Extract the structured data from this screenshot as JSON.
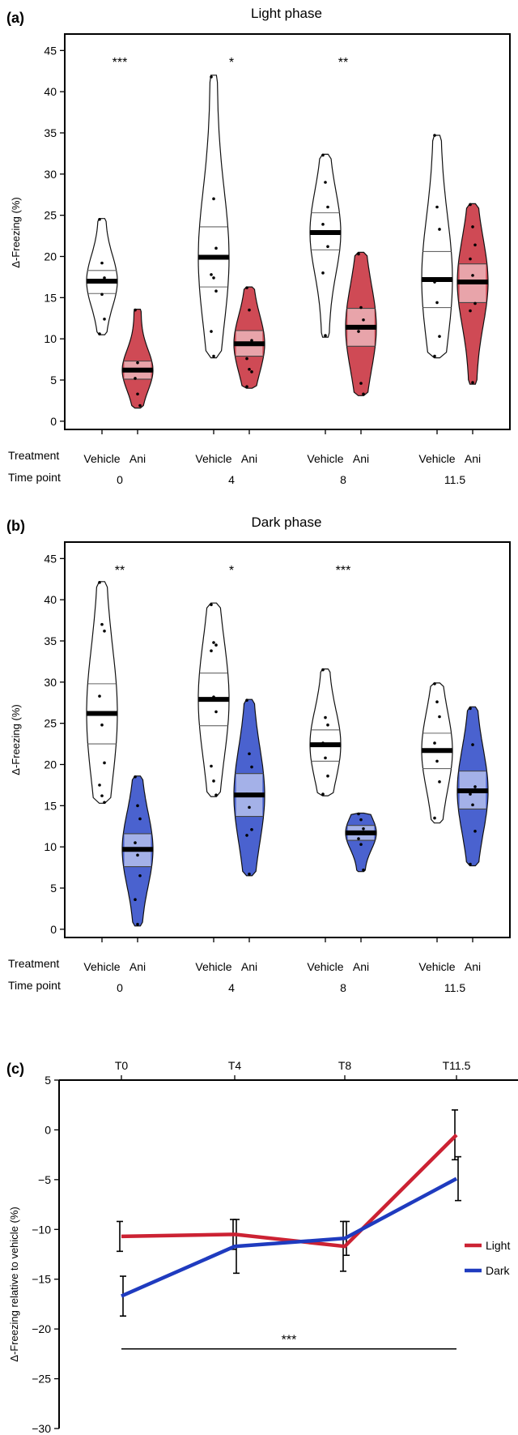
{
  "colors": {
    "light_violin": "#cf4a55",
    "light_violin_box": "#e8a4aa",
    "dark_violin": "#4a62cf",
    "dark_violin_box": "#a4b1e8",
    "light_line": "#cc2233",
    "dark_line": "#1f3bbf"
  },
  "chart_data": [
    {
      "panel": "(a)",
      "type": "violin",
      "title": "Light phase",
      "ylabel": "Δ-Freezing (%)",
      "ylim": [
        -1,
        47
      ],
      "yticks": [
        0,
        5,
        10,
        15,
        20,
        25,
        30,
        35,
        40,
        45
      ],
      "row_labels": {
        "treatment": "Treatment",
        "time": "Time point"
      },
      "time_points": [
        "0",
        "4",
        "8",
        "11.5"
      ],
      "significance": [
        "***",
        "*",
        "**",
        ""
      ],
      "groups": [
        {
          "treatment": "Vehicle",
          "time": "0",
          "min": 10.5,
          "max": 24.6,
          "q1": 15.5,
          "median": 17.0,
          "q3": 18.3,
          "points": [
            24.5,
            19.2,
            17.4,
            16.9,
            15.4,
            12.4,
            10.6
          ]
        },
        {
          "treatment": "Ani",
          "time": "0",
          "min": 1.6,
          "max": 13.6,
          "q1": 5.1,
          "median": 6.2,
          "q3": 7.3,
          "points": [
            13.5,
            7.1,
            6.3,
            5.2,
            3.3,
            1.9
          ]
        },
        {
          "treatment": "Vehicle",
          "time": "4",
          "min": 7.7,
          "max": 42.0,
          "q1": 16.3,
          "median": 19.9,
          "q3": 23.6,
          "points": [
            41.8,
            27.0,
            21.0,
            17.8,
            17.4,
            15.8,
            10.9,
            7.9
          ]
        },
        {
          "treatment": "Ani",
          "time": "4",
          "min": 4.0,
          "max": 16.3,
          "q1": 7.9,
          "median": 9.4,
          "q3": 11.0,
          "points": [
            16.2,
            13.5,
            9.8,
            7.6,
            6.3,
            6.0,
            4.2
          ]
        },
        {
          "treatment": "Vehicle",
          "time": "8",
          "min": 10.2,
          "max": 32.4,
          "q1": 20.8,
          "median": 22.9,
          "q3": 25.3,
          "points": [
            32.3,
            29.0,
            26.0,
            23.9,
            23.0,
            21.2,
            18.0,
            10.4
          ]
        },
        {
          "treatment": "Ani",
          "time": "8",
          "min": 3.1,
          "max": 20.5,
          "q1": 9.1,
          "median": 11.4,
          "q3": 13.7,
          "points": [
            20.3,
            13.8,
            12.3,
            10.9,
            4.6,
            3.3
          ]
        },
        {
          "treatment": "Vehicle",
          "time": "11.5",
          "min": 7.7,
          "max": 34.7,
          "q1": 13.8,
          "median": 17.2,
          "q3": 20.6,
          "points": [
            34.7,
            26.0,
            23.3,
            16.9,
            14.4,
            10.3,
            7.9
          ]
        },
        {
          "treatment": "Ani",
          "time": "11.5",
          "min": 4.5,
          "max": 26.4,
          "q1": 14.4,
          "median": 16.9,
          "q3": 19.1,
          "points": [
            26.3,
            23.6,
            21.4,
            19.7,
            17.7,
            14.3,
            13.4,
            4.7
          ]
        }
      ]
    },
    {
      "panel": "(b)",
      "type": "violin",
      "title": "Dark phase",
      "ylabel": "Δ-Freezing (%)",
      "ylim": [
        -1,
        47
      ],
      "yticks": [
        0,
        5,
        10,
        15,
        20,
        25,
        30,
        35,
        40,
        45
      ],
      "row_labels": {
        "treatment": "Treatment",
        "time": "Time point"
      },
      "time_points": [
        "0",
        "4",
        "8",
        "11.5"
      ],
      "significance": [
        "**",
        "*",
        "***",
        ""
      ],
      "groups": [
        {
          "treatment": "Vehicle",
          "time": "0",
          "min": 15.3,
          "max": 42.2,
          "q1": 22.5,
          "median": 26.2,
          "q3": 29.8,
          "points": [
            42.1,
            37.0,
            36.2,
            28.3,
            24.8,
            20.2,
            17.5,
            16.2,
            15.4
          ]
        },
        {
          "treatment": "Ani",
          "time": "0",
          "min": 0.4,
          "max": 18.6,
          "q1": 7.6,
          "median": 9.7,
          "q3": 11.6,
          "points": [
            18.5,
            15.0,
            13.4,
            10.5,
            9.0,
            6.5,
            3.6,
            0.6
          ]
        },
        {
          "treatment": "Vehicle",
          "time": "4",
          "min": 16.1,
          "max": 39.6,
          "q1": 24.7,
          "median": 27.9,
          "q3": 31.1,
          "points": [
            39.4,
            34.8,
            34.5,
            33.8,
            28.2,
            26.4,
            19.8,
            18.0,
            16.3
          ]
        },
        {
          "treatment": "Ani",
          "time": "4",
          "min": 6.5,
          "max": 27.9,
          "q1": 13.7,
          "median": 16.3,
          "q3": 18.9,
          "points": [
            27.8,
            21.3,
            19.7,
            16.4,
            14.8,
            12.1,
            11.4,
            6.7
          ]
        },
        {
          "treatment": "Vehicle",
          "time": "8",
          "min": 16.2,
          "max": 31.6,
          "q1": 20.4,
          "median": 22.4,
          "q3": 24.2,
          "points": [
            31.5,
            25.7,
            24.8,
            22.6,
            20.8,
            18.6,
            16.4
          ]
        },
        {
          "treatment": "Ani",
          "time": "8",
          "min": 7.0,
          "max": 14.1,
          "q1": 10.8,
          "median": 11.7,
          "q3": 12.6,
          "points": [
            14.0,
            13.3,
            12.2,
            11.0,
            10.3,
            7.2
          ]
        },
        {
          "treatment": "Vehicle",
          "time": "11.5",
          "min": 12.9,
          "max": 29.9,
          "q1": 19.5,
          "median": 21.7,
          "q3": 23.8,
          "points": [
            29.8,
            27.6,
            25.8,
            22.6,
            20.4,
            17.9,
            13.5
          ]
        },
        {
          "treatment": "Ani",
          "time": "11.5",
          "min": 7.7,
          "max": 27.0,
          "q1": 14.6,
          "median": 16.8,
          "q3": 19.2,
          "points": [
            26.8,
            22.4,
            17.3,
            16.4,
            15.1,
            11.9,
            7.9
          ]
        }
      ]
    },
    {
      "panel": "(c)",
      "type": "line",
      "ylabel": "Δ-Freezing relative to vehicle (%)",
      "ylim": [
        -30,
        5
      ],
      "yticks": [
        5,
        0,
        -5,
        -10,
        -15,
        -20,
        -25,
        -30
      ],
      "x_labels": [
        "T0",
        "T4",
        "T8",
        "T11.5"
      ],
      "significance": "***",
      "series": [
        {
          "name": "Light",
          "values": [
            -10.7,
            -10.5,
            -11.7,
            -0.5
          ],
          "errors": [
            1.5,
            1.5,
            2.5,
            2.5
          ]
        },
        {
          "name": "Dark",
          "values": [
            -16.7,
            -11.7,
            -10.9,
            -4.9
          ],
          "errors": [
            2.0,
            2.7,
            1.7,
            2.2
          ]
        }
      ]
    }
  ]
}
